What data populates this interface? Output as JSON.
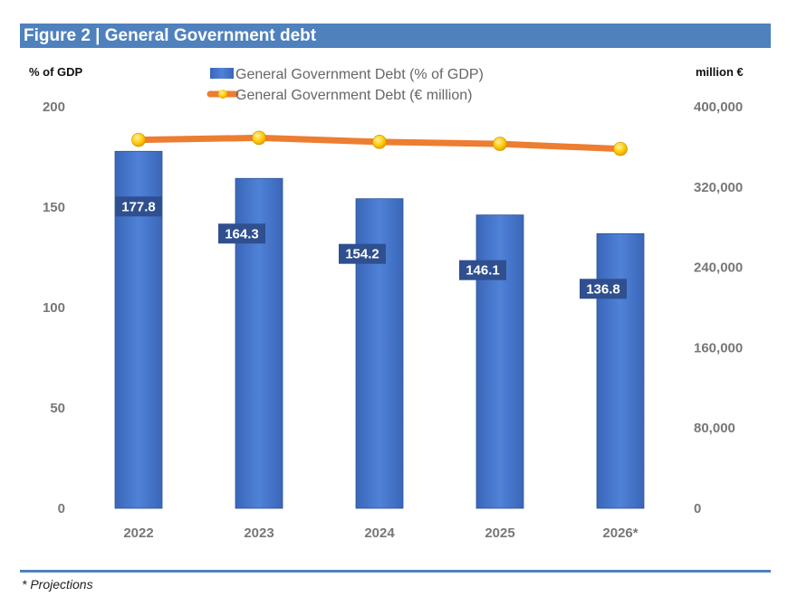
{
  "figure_title": "Figure 2 | General Government debt",
  "footnote": "* Projections",
  "chart_data": {
    "type": "bar+line",
    "categories": [
      "2022",
      "2023",
      "2024",
      "2025",
      "2026*"
    ],
    "left_axis": {
      "label": "% of GDP",
      "range": [
        0,
        200
      ],
      "ticks": [
        "0",
        "50",
        "100",
        "150",
        "200"
      ]
    },
    "right_axis": {
      "label": "million €",
      "range": [
        0,
        400000
      ],
      "ticks": [
        "0",
        "80,000",
        "160,000",
        "240,000",
        "320,000",
        "400,000"
      ]
    },
    "series": [
      {
        "name": "General Government Debt (% of GDP)",
        "type": "bar",
        "axis": "left",
        "values": [
          177.8,
          164.3,
          154.2,
          146.1,
          136.8
        ],
        "labels": [
          "177.8",
          "164.3",
          "154.2",
          "146.1",
          "136.8"
        ],
        "color": "#4a78cf"
      },
      {
        "name": "General Government Debt (€ million)",
        "type": "line",
        "axis": "right",
        "values": [
          367000,
          369000,
          365000,
          363000,
          358000
        ],
        "color": "#ed7d31",
        "marker_color": "#ffc000"
      }
    ],
    "grid": false,
    "legend": "top-center"
  }
}
